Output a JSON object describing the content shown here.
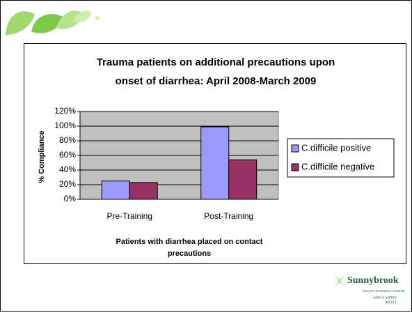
{
  "chart_data": {
    "type": "bar",
    "title": [
      "Trauma patients on additional precautions upon",
      "onset of diarrhea:  April 2008-March 2009"
    ],
    "x_label": [
      "Patients with diarrhea placed on contact",
      "precautions"
    ],
    "y_label": "% Compliance",
    "categories": [
      "Pre-Training",
      "Post-Training"
    ],
    "series": [
      {
        "name": "C.difficile positive",
        "color": "#9999ff",
        "values": [
          25,
          99
        ]
      },
      {
        "name": "C.difficile negative",
        "color": "#993366",
        "values": [
          23,
          54
        ]
      }
    ],
    "ylim": [
      0,
      120
    ],
    "yticks": [
      {
        "value": 0,
        "label": "0%"
      },
      {
        "value": 20,
        "label": "20%"
      },
      {
        "value": 40,
        "label": "40%"
      },
      {
        "value": 60,
        "label": "60%"
      },
      {
        "value": 80,
        "label": "80%"
      },
      {
        "value": 100,
        "label": "100%"
      },
      {
        "value": 120,
        "label": "120%"
      }
    ],
    "grid": true,
    "legend": "right"
  },
  "logo": {
    "name": "Sunnybrook",
    "subtitle": "HEALTH SCIENCES CENTRE",
    "tagline": [
      "when it matters",
      "MOST"
    ]
  }
}
